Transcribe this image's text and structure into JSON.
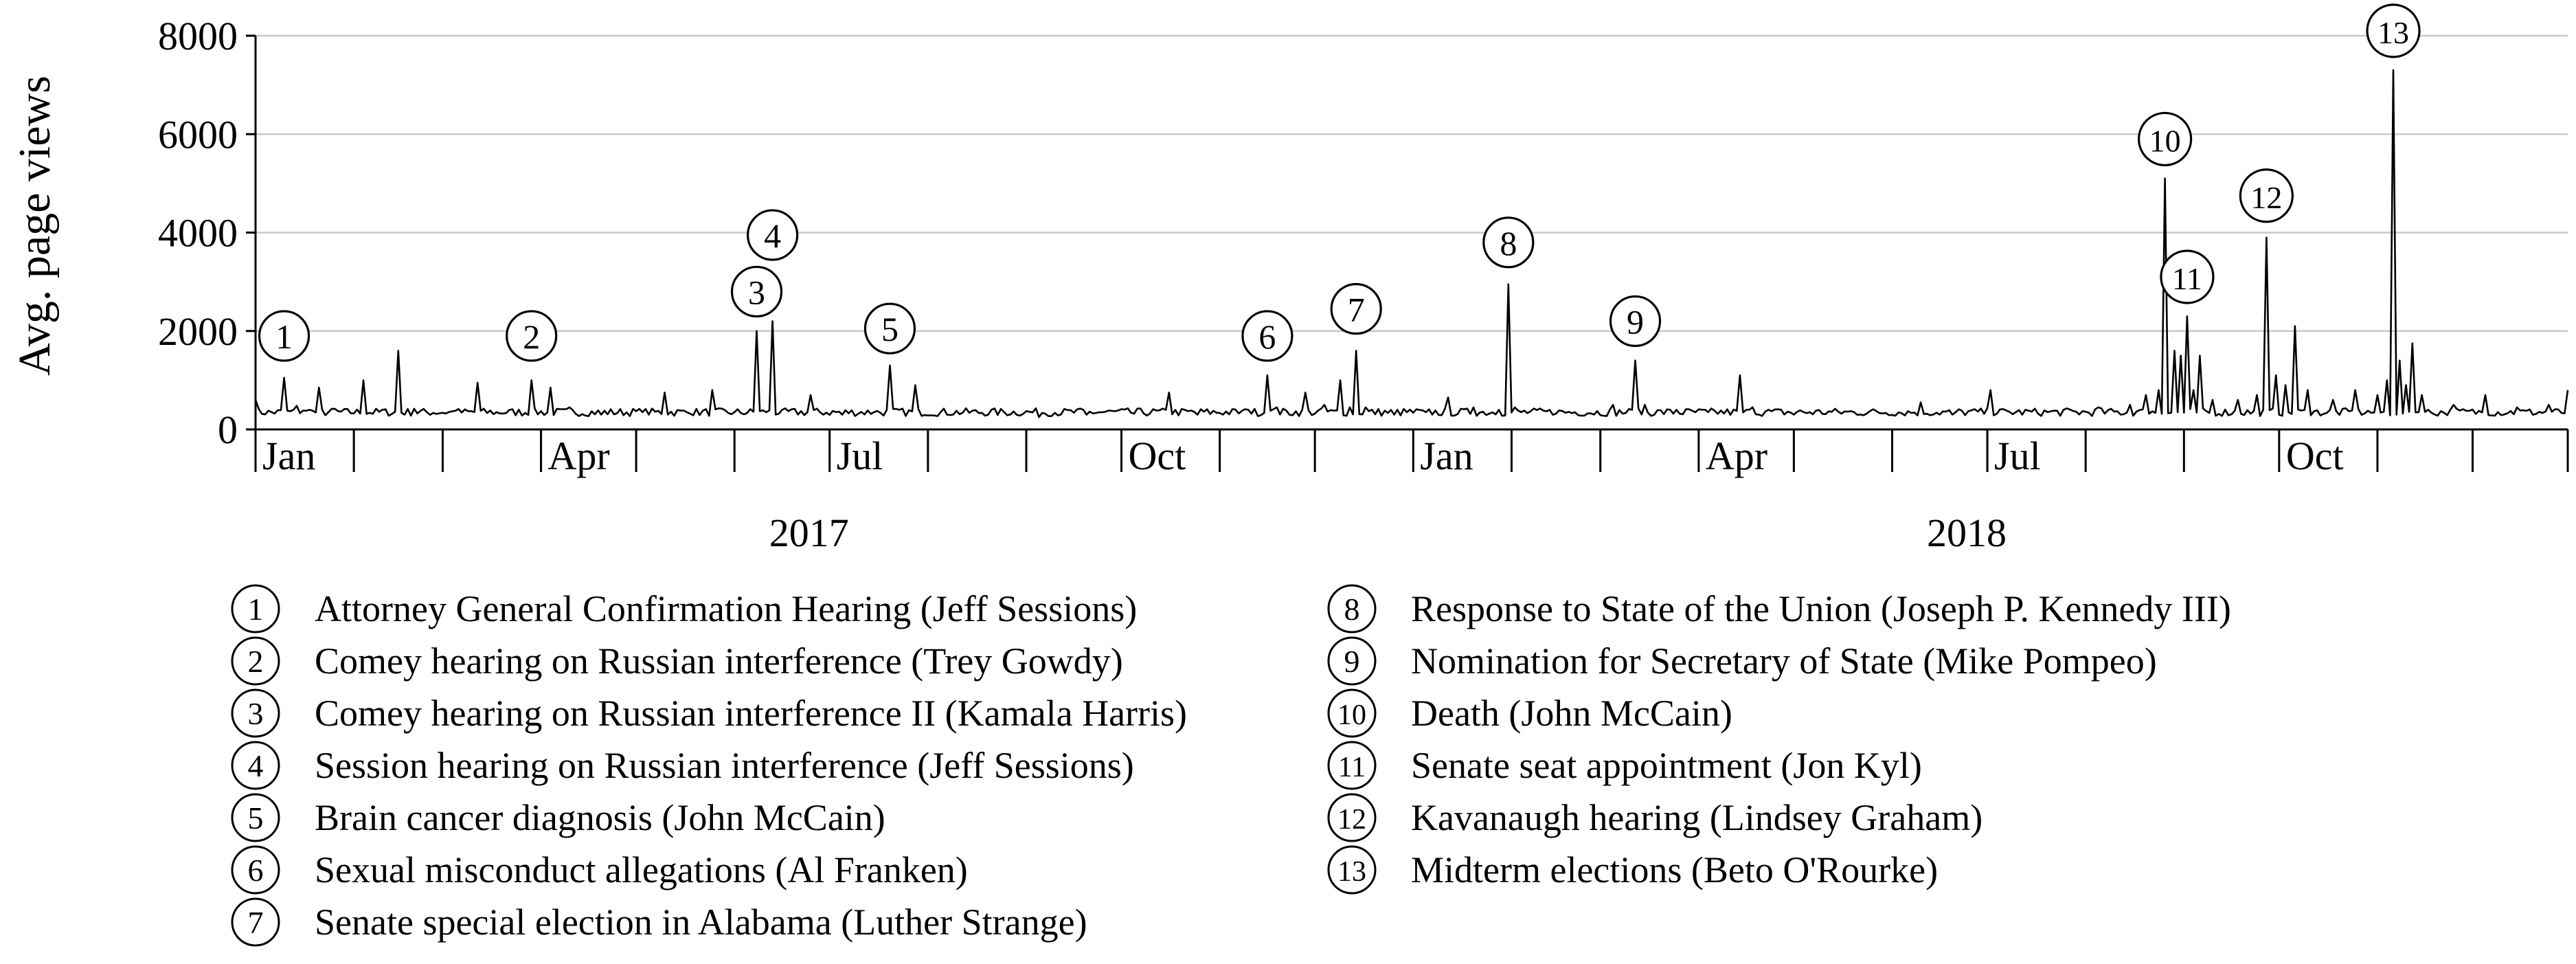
{
  "chart_data": {
    "type": "line",
    "ylabel": "Avg. page views",
    "ylim": [
      0,
      8000
    ],
    "y_ticks": [
      0,
      2000,
      4000,
      6000,
      8000
    ],
    "grid": "horizontal",
    "x_range": [
      "2017-01-01",
      "2018-12-31"
    ],
    "month_labels": [
      {
        "date": "2017-01-01",
        "label": "Jan"
      },
      {
        "date": "2017-04-01",
        "label": "Apr"
      },
      {
        "date": "2017-07-01",
        "label": "Jul"
      },
      {
        "date": "2017-10-01",
        "label": "Oct"
      },
      {
        "date": "2018-01-01",
        "label": "Jan"
      },
      {
        "date": "2018-04-01",
        "label": "Apr"
      },
      {
        "date": "2018-07-01",
        "label": "Jul"
      },
      {
        "date": "2018-10-01",
        "label": "Oct"
      }
    ],
    "year_labels": [
      {
        "date": "2017-07-01",
        "label": "2017"
      },
      {
        "date": "2018-07-01",
        "label": "2018"
      }
    ],
    "baseline": 350,
    "points": [
      [
        "2017-01-01",
        600
      ],
      [
        "2017-01-05",
        380
      ],
      [
        "2017-01-10",
        1050
      ],
      [
        "2017-01-14",
        480
      ],
      [
        "2017-01-18",
        400
      ],
      [
        "2017-01-21",
        850
      ],
      [
        "2017-01-26",
        420
      ],
      [
        "2017-02-04",
        1000
      ],
      [
        "2017-02-10",
        400
      ],
      [
        "2017-02-15",
        1600
      ],
      [
        "2017-02-20",
        420
      ],
      [
        "2017-03-05",
        380
      ],
      [
        "2017-03-12",
        950
      ],
      [
        "2017-03-18",
        350
      ],
      [
        "2017-03-29",
        1000
      ],
      [
        "2017-04-04",
        850
      ],
      [
        "2017-04-10",
        450
      ],
      [
        "2017-04-20",
        300
      ],
      [
        "2017-05-03",
        350
      ],
      [
        "2017-05-10",
        750
      ],
      [
        "2017-05-18",
        320
      ],
      [
        "2017-05-25",
        800
      ],
      [
        "2017-06-01",
        350
      ],
      [
        "2017-06-08",
        2000
      ],
      [
        "2017-06-11",
        350
      ],
      [
        "2017-06-13",
        2200
      ],
      [
        "2017-06-16",
        400
      ],
      [
        "2017-06-25",
        700
      ],
      [
        "2017-07-05",
        300
      ],
      [
        "2017-07-15",
        350
      ],
      [
        "2017-07-20",
        1300
      ],
      [
        "2017-07-23",
        400
      ],
      [
        "2017-07-28",
        900
      ],
      [
        "2017-08-05",
        350
      ],
      [
        "2017-08-20",
        300
      ],
      [
        "2017-09-05",
        250
      ],
      [
        "2017-09-20",
        300
      ],
      [
        "2017-10-05",
        320
      ],
      [
        "2017-10-16",
        750
      ],
      [
        "2017-10-25",
        300
      ],
      [
        "2017-11-10",
        400
      ],
      [
        "2017-11-16",
        1100
      ],
      [
        "2017-11-19",
        450
      ],
      [
        "2017-11-28",
        750
      ],
      [
        "2017-12-04",
        500
      ],
      [
        "2017-12-09",
        1000
      ],
      [
        "2017-12-12",
        450
      ],
      [
        "2017-12-14",
        1600
      ],
      [
        "2017-12-17",
        450
      ],
      [
        "2017-12-26",
        300
      ],
      [
        "2018-01-05",
        350
      ],
      [
        "2018-01-12",
        650
      ],
      [
        "2018-01-20",
        450
      ],
      [
        "2018-01-28",
        400
      ],
      [
        "2018-01-31",
        2950
      ],
      [
        "2018-02-02",
        450
      ],
      [
        "2018-02-15",
        320
      ],
      [
        "2018-03-05",
        500
      ],
      [
        "2018-03-12",
        1400
      ],
      [
        "2018-03-15",
        500
      ],
      [
        "2018-03-25",
        400
      ],
      [
        "2018-04-04",
        350
      ],
      [
        "2018-04-14",
        1100
      ],
      [
        "2018-04-18",
        450
      ],
      [
        "2018-05-01",
        300
      ],
      [
        "2018-05-20",
        350
      ],
      [
        "2018-06-10",
        550
      ],
      [
        "2018-06-20",
        300
      ],
      [
        "2018-07-02",
        800
      ],
      [
        "2018-07-10",
        350
      ],
      [
        "2018-07-25",
        400
      ],
      [
        "2018-08-05",
        450
      ],
      [
        "2018-08-15",
        500
      ],
      [
        "2018-08-20",
        700
      ],
      [
        "2018-08-24",
        800
      ],
      [
        "2018-08-26",
        5100
      ],
      [
        "2018-08-29",
        1600
      ],
      [
        "2018-08-31",
        1500
      ],
      [
        "2018-09-02",
        2300
      ],
      [
        "2018-09-04",
        800
      ],
      [
        "2018-09-06",
        1500
      ],
      [
        "2018-09-10",
        600
      ],
      [
        "2018-09-18",
        600
      ],
      [
        "2018-09-24",
        700
      ],
      [
        "2018-09-27",
        3900
      ],
      [
        "2018-09-30",
        1100
      ],
      [
        "2018-10-03",
        900
      ],
      [
        "2018-10-06",
        2100
      ],
      [
        "2018-10-10",
        800
      ],
      [
        "2018-10-18",
        600
      ],
      [
        "2018-10-25",
        800
      ],
      [
        "2018-11-01",
        700
      ],
      [
        "2018-11-04",
        1000
      ],
      [
        "2018-11-06",
        7300
      ],
      [
        "2018-11-08",
        1400
      ],
      [
        "2018-11-10",
        900
      ],
      [
        "2018-11-12",
        1750
      ],
      [
        "2018-11-15",
        700
      ],
      [
        "2018-11-25",
        500
      ],
      [
        "2018-12-05",
        700
      ],
      [
        "2018-12-15",
        450
      ],
      [
        "2018-12-25",
        500
      ],
      [
        "2018-12-31",
        800
      ]
    ],
    "annotations": [
      {
        "id": "1",
        "date": "2017-01-10",
        "value": 1900
      },
      {
        "id": "2",
        "date": "2017-03-29",
        "value": 1900
      },
      {
        "id": "3",
        "date": "2017-06-08",
        "value": 2800
      },
      {
        "id": "4",
        "date": "2017-06-13",
        "value": 3950
      },
      {
        "id": "5",
        "date": "2017-07-20",
        "value": 2050
      },
      {
        "id": "6",
        "date": "2017-11-16",
        "value": 1900
      },
      {
        "id": "7",
        "date": "2017-12-14",
        "value": 2450
      },
      {
        "id": "8",
        "date": "2018-01-31",
        "value": 3800
      },
      {
        "id": "9",
        "date": "2018-03-12",
        "value": 2200
      },
      {
        "id": "10",
        "date": "2018-08-26",
        "value": 5900
      },
      {
        "id": "11",
        "date": "2018-09-02",
        "value": 3100
      },
      {
        "id": "12",
        "date": "2018-09-27",
        "value": 4750
      },
      {
        "id": "13",
        "date": "2018-11-06",
        "value": 8100
      }
    ],
    "legend": [
      {
        "id": "1",
        "text": "Attorney General Confirmation Hearing (Jeff Sessions)"
      },
      {
        "id": "2",
        "text": "Comey hearing on Russian interference (Trey Gowdy)"
      },
      {
        "id": "3",
        "text": "Comey hearing on Russian interference II (Kamala Harris)"
      },
      {
        "id": "4",
        "text": "Session hearing on Russian interference (Jeff Sessions)"
      },
      {
        "id": "5",
        "text": "Brain cancer diagnosis (John McCain)"
      },
      {
        "id": "6",
        "text": "Sexual misconduct allegations (Al Franken)"
      },
      {
        "id": "7",
        "text": "Senate special election in Alabama (Luther Strange)"
      },
      {
        "id": "8",
        "text": "Response to State of the Union (Joseph P. Kennedy III)"
      },
      {
        "id": "9",
        "text": "Nomination for Secretary of State (Mike Pompeo)"
      },
      {
        "id": "10",
        "text": "Death (John McCain)"
      },
      {
        "id": "11",
        "text": "Senate seat appointment (Jon Kyl)"
      },
      {
        "id": "12",
        "text": "Kavanaugh hearing (Lindsey Graham)"
      },
      {
        "id": "13",
        "text": "Midterm elections (Beto O'Rourke)"
      }
    ]
  }
}
